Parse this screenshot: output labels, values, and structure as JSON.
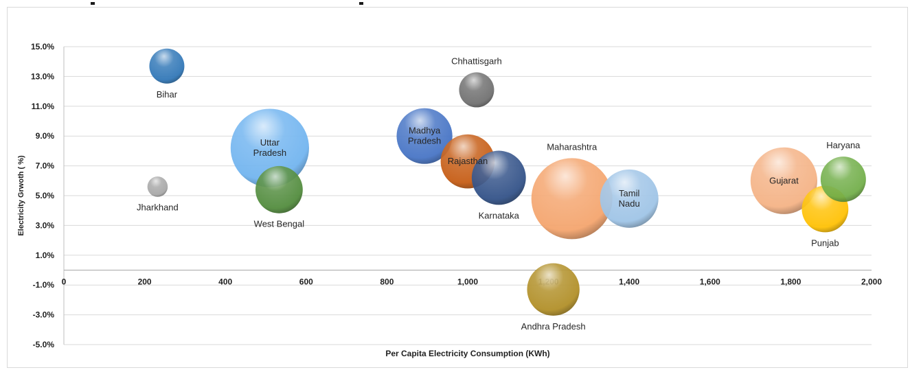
{
  "chart_data": {
    "type": "bubble",
    "title": "",
    "xlabel": "Per Capita Electricity Consumption (KWh)",
    "ylabel": "Electricity Grwoth ( %)",
    "xlim": [
      0,
      2000
    ],
    "ylim": [
      -5,
      15
    ],
    "x_ticks": [
      "0",
      "200",
      "400",
      "600",
      "800",
      "1,000",
      "1,200",
      "1,400",
      "1,600",
      "1,800",
      "2,000"
    ],
    "y_ticks": [
      "15.0%",
      "13.0%",
      "11.0%",
      "9.0%",
      "7.0%",
      "5.0%",
      "3.0%",
      "1.0%",
      "-1.0%",
      "-3.0%",
      "-5.0%"
    ],
    "grid": "horizontal",
    "points": [
      {
        "label": "Bihar",
        "x": 255,
        "y": 13.7,
        "size": 2.1,
        "color": "#2e75b6",
        "label_pos": "below"
      },
      {
        "label": "Jharkhand",
        "x": 232,
        "y": 5.6,
        "size": 0.7,
        "color": "#a6a6a6",
        "label_pos": "below"
      },
      {
        "label": "Uttar Pradesh",
        "x": 510,
        "y": 8.2,
        "size": 10.5,
        "color": "#6fb3ef",
        "label_pos": "inside"
      },
      {
        "label": "West Bengal",
        "x": 533,
        "y": 5.4,
        "size": 3.8,
        "color": "#4f8a3a",
        "label_pos": "below"
      },
      {
        "label": "Chhattisgarh",
        "x": 1022,
        "y": 12.1,
        "size": 2.1,
        "color": "#6e6e6e",
        "label_pos": "above"
      },
      {
        "label": "Madhya Pradesh",
        "x": 893,
        "y": 9.0,
        "size": 5.3,
        "color": "#4472c4",
        "label_pos": "inside"
      },
      {
        "label": "Rajasthan",
        "x": 1000,
        "y": 7.3,
        "size": 5.0,
        "color": "#c55a11",
        "label_pos": "inside"
      },
      {
        "label": "Karnataka",
        "x": 1077,
        "y": 6.2,
        "size": 5.0,
        "color": "#2f4f86",
        "label_pos": "below"
      },
      {
        "label": "Maharashtra",
        "x": 1258,
        "y": 4.8,
        "size": 11.2,
        "color": "#f4a36b",
        "label_pos": "above"
      },
      {
        "label": "Tamil Nadu",
        "x": 1400,
        "y": 4.8,
        "size": 5.8,
        "color": "#9dc3e6",
        "label_pos": "inside"
      },
      {
        "label": "Andhra Pradesh",
        "x": 1212,
        "y": -1.3,
        "size": 4.7,
        "color": "#b08d24",
        "label_pos": "below"
      },
      {
        "label": "Gujarat",
        "x": 1783,
        "y": 6.0,
        "size": 7.6,
        "color": "#f4b183",
        "label_pos": "inside"
      },
      {
        "label": "Haryana",
        "x": 1930,
        "y": 6.1,
        "size": 3.5,
        "color": "#70ad47",
        "label_pos": "above"
      },
      {
        "label": "Punjab",
        "x": 1885,
        "y": 4.1,
        "size": 3.7,
        "color": "#ffc000",
        "label_pos": "below"
      }
    ]
  }
}
